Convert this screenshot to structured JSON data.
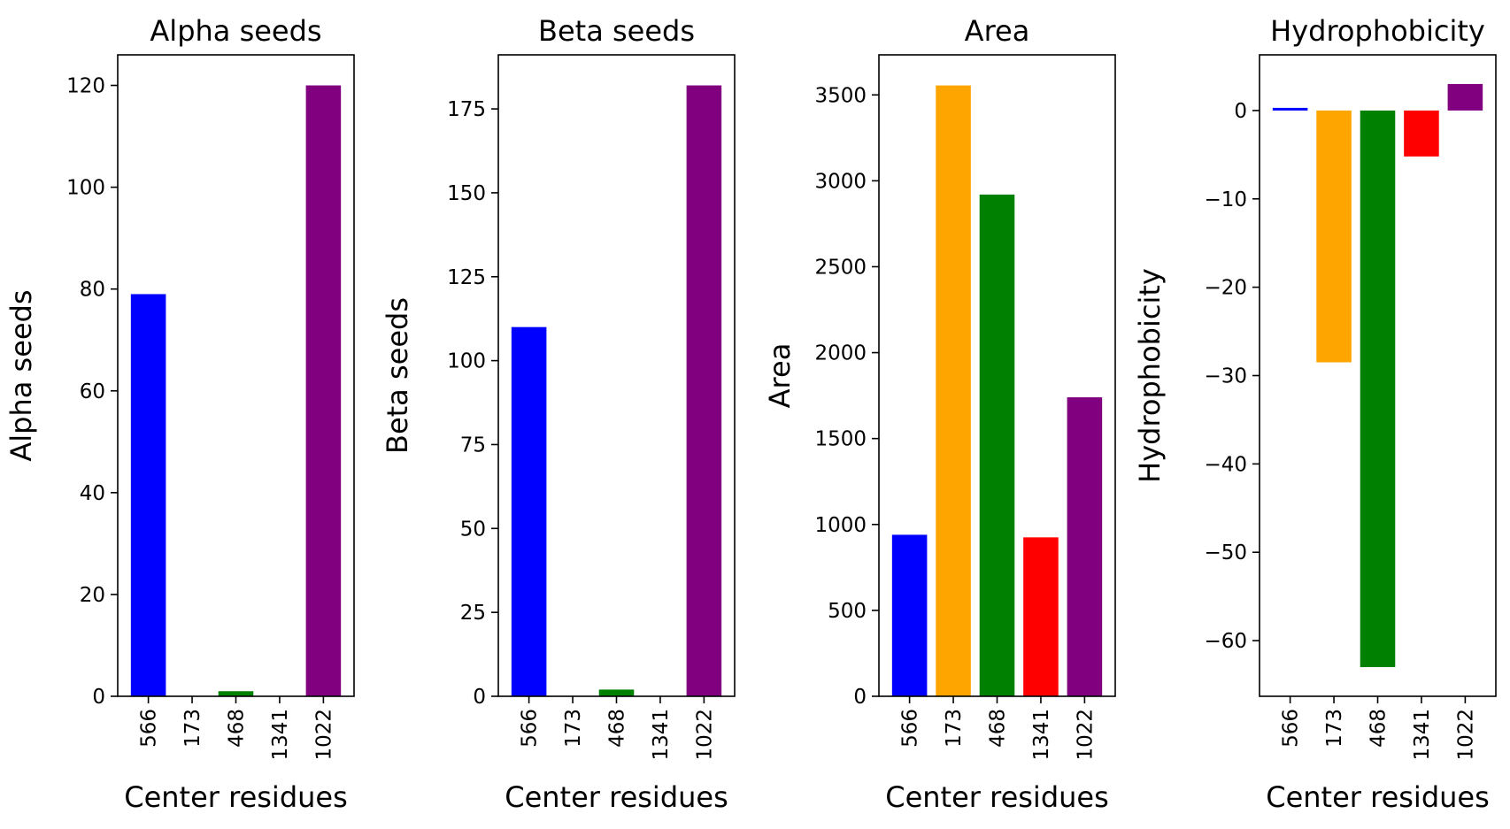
{
  "chart_data": [
    {
      "type": "bar",
      "title": "Alpha seeds",
      "xlabel": "Center residues",
      "ylabel": "Alpha seeds",
      "categories": [
        "566",
        "173",
        "468",
        "1341",
        "1022"
      ],
      "values": [
        79,
        0,
        1,
        0,
        120
      ],
      "colors": [
        "#0000ff",
        "#ffa500",
        "#008000",
        "#ff0000",
        "#800080"
      ],
      "ylim": [
        0,
        126
      ],
      "yticks": [
        0,
        20,
        40,
        60,
        80,
        100,
        120
      ],
      "ytick_labels": [
        "0",
        "20",
        "40",
        "60",
        "80",
        "100",
        "120"
      ],
      "grid": false,
      "legend": false
    },
    {
      "type": "bar",
      "title": "Beta seeds",
      "xlabel": "Center residues",
      "ylabel": "Beta seeds",
      "categories": [
        "566",
        "173",
        "468",
        "1341",
        "1022"
      ],
      "values": [
        110,
        0,
        2,
        0,
        182
      ],
      "colors": [
        "#0000ff",
        "#ffa500",
        "#008000",
        "#ff0000",
        "#800080"
      ],
      "ylim": [
        0,
        191.1
      ],
      "yticks": [
        0,
        25,
        50,
        75,
        100,
        125,
        150,
        175
      ],
      "ytick_labels": [
        "0",
        "25",
        "50",
        "75",
        "100",
        "125",
        "150",
        "175"
      ],
      "grid": false,
      "legend": false
    },
    {
      "type": "bar",
      "title": "Area",
      "xlabel": "Center residues",
      "ylabel": "Area",
      "categories": [
        "566",
        "173",
        "468",
        "1341",
        "1022"
      ],
      "values": [
        940,
        3555,
        2920,
        925,
        1740
      ],
      "colors": [
        "#0000ff",
        "#ffa500",
        "#008000",
        "#ff0000",
        "#800080"
      ],
      "ylim": [
        0,
        3733
      ],
      "yticks": [
        0,
        500,
        1000,
        1500,
        2000,
        2500,
        3000,
        3500
      ],
      "ytick_labels": [
        "0",
        "500",
        "1000",
        "1500",
        "2000",
        "2500",
        "3000",
        "3500"
      ],
      "grid": false,
      "legend": false
    },
    {
      "type": "bar",
      "title": "Hydrophobicity",
      "xlabel": "Center residues",
      "ylabel": "Hydrophobicity",
      "categories": [
        "566",
        "173",
        "468",
        "1341",
        "1022"
      ],
      "values": [
        0.3,
        -28.5,
        -63,
        -5.2,
        3
      ],
      "colors": [
        "#0000ff",
        "#ffa500",
        "#008000",
        "#ff0000",
        "#800080"
      ],
      "ylim": [
        -66.3,
        6.3
      ],
      "yticks": [
        0,
        -10,
        -20,
        -30,
        -40,
        -50,
        -60
      ],
      "ytick_labels": [
        "0",
        "−10",
        "−20",
        "−30",
        "−40",
        "−50",
        "−60"
      ],
      "grid": false,
      "legend": false
    }
  ]
}
